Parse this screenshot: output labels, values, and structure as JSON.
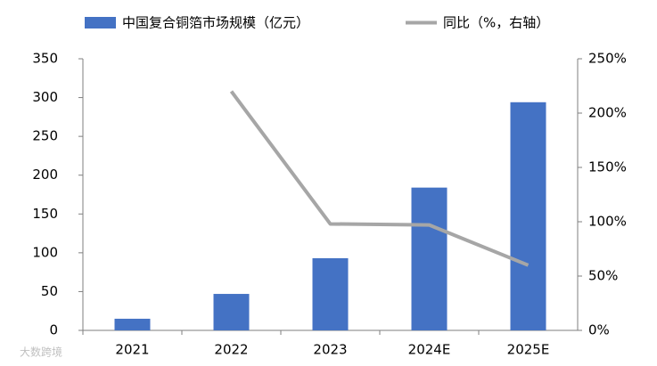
{
  "chart_data": {
    "type": "bar",
    "categories": [
      "2021",
      "2022",
      "2023",
      "2024E",
      "2025E"
    ],
    "series": [
      {
        "name": "中国复合铜箔市场规模（亿元）",
        "type": "bar",
        "color": "#4472c4",
        "values": [
          15,
          47,
          93,
          184,
          294
        ]
      },
      {
        "name": "同比（%，右轴）",
        "type": "line",
        "axis": "y2",
        "color": "#a6a6a6",
        "values": [
          null,
          220,
          98,
          97,
          60
        ]
      }
    ],
    "ylim": [
      0,
      350
    ],
    "yticks": [
      0,
      50,
      100,
      150,
      200,
      250,
      300,
      350
    ],
    "y2lim": [
      0,
      250
    ],
    "y2ticks": [
      {
        "value": 0,
        "label": "0%"
      },
      {
        "value": 50,
        "label": "50%"
      },
      {
        "value": 100,
        "label": "100%"
      },
      {
        "value": 150,
        "label": "150%"
      },
      {
        "value": 200,
        "label": "200%"
      },
      {
        "value": 250,
        "label": "250%"
      }
    ],
    "grid": false,
    "legend": "top",
    "watermark": "大数跨境"
  }
}
